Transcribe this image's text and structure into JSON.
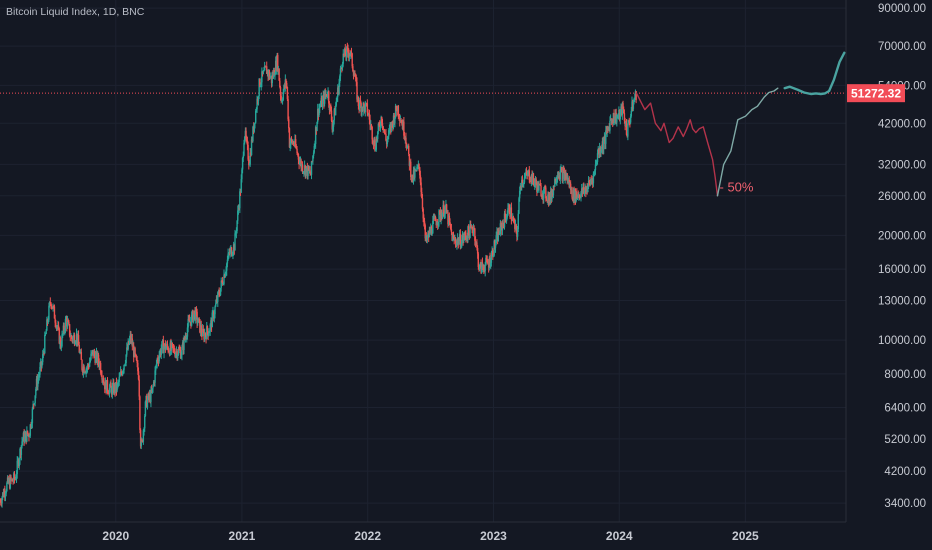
{
  "chart_data": {
    "type": "line",
    "title": "Bitcoin Liquid Index, 1D, BNC",
    "y_scale": "log",
    "ylim": [
      3000,
      95000
    ],
    "xlim": [
      "2019-01-30",
      "2025-10-20"
    ],
    "y_ticks": [
      90000,
      70000,
      54000,
      42000,
      32000,
      26000,
      20000,
      16000,
      13000,
      10000,
      8000,
      6400,
      5200,
      4200,
      3400
    ],
    "y_tick_labels": [
      "90000.00",
      "70000.00",
      "54000.00",
      "42000.00",
      "32000.00",
      "26000.00",
      "20000.00",
      "16000.00",
      "13000.00",
      "10000.00",
      "8000.00",
      "6400.00",
      "5200.00",
      "4200.00",
      "3400.00"
    ],
    "x_ticks": [
      "2020-01-01",
      "2021-01-01",
      "2022-01-01",
      "2023-01-01",
      "2024-01-01",
      "2025-01-01"
    ],
    "x_tick_labels": [
      "2020",
      "2021",
      "2022",
      "2023",
      "2024",
      "2025"
    ],
    "last_price": 51272.32,
    "last_price_label": "51272.32",
    "colors": {
      "up": "#26a69a",
      "down": "#ef5350",
      "background": "#141823",
      "price_tag": "#f24c57",
      "projection_down": "#b3334a",
      "projection_up": "#7fa9a6",
      "projection_final": "#4aa3a0"
    },
    "series": [
      {
        "type": "price",
        "x": [
          "2019-01-30",
          "2019-02-20",
          "2019-03-15",
          "2019-04-05",
          "2019-04-25",
          "2019-05-15",
          "2019-06-01",
          "2019-06-15",
          "2019-06-26",
          "2019-07-10",
          "2019-07-25",
          "2019-08-10",
          "2019-08-25",
          "2019-09-10",
          "2019-09-25",
          "2019-10-10",
          "2019-10-26",
          "2019-11-15",
          "2019-12-01",
          "2019-12-18",
          "2020-01-05",
          "2020-01-25",
          "2020-02-13",
          "2020-02-28",
          "2020-03-08",
          "2020-03-12",
          "2020-03-16",
          "2020-03-28",
          "2020-04-15",
          "2020-04-30",
          "2020-05-15",
          "2020-06-01",
          "2020-06-20",
          "2020-07-10",
          "2020-07-28",
          "2020-08-17",
          "2020-09-10",
          "2020-09-30",
          "2020-10-20",
          "2020-11-10",
          "2020-11-25",
          "2020-12-10",
          "2020-12-31",
          "2021-01-08",
          "2021-01-22",
          "2021-02-08",
          "2021-02-21",
          "2021-03-13",
          "2021-03-28",
          "2021-04-14",
          "2021-04-25",
          "2021-05-10",
          "2021-05-19",
          "2021-06-01",
          "2021-06-22",
          "2021-07-20",
          "2021-08-10",
          "2021-08-25",
          "2021-09-07",
          "2021-09-21",
          "2021-10-10",
          "2021-10-20",
          "2021-11-10",
          "2021-11-25",
          "2021-12-04",
          "2021-12-31",
          "2022-01-22",
          "2022-02-10",
          "2022-02-24",
          "2022-03-28",
          "2022-04-20",
          "2022-05-10",
          "2022-05-31",
          "2022-06-18",
          "2022-07-10",
          "2022-08-14",
          "2022-09-06",
          "2022-10-01",
          "2022-11-05",
          "2022-11-21",
          "2022-12-20",
          "2023-01-14",
          "2023-02-16",
          "2023-03-10",
          "2023-03-20",
          "2023-04-14",
          "2023-05-10",
          "2023-06-15",
          "2023-07-05",
          "2023-08-01",
          "2023-08-20",
          "2023-09-15",
          "2023-10-01",
          "2023-10-20",
          "2023-10-30",
          "2023-11-20",
          "2023-12-08",
          "2024-01-01",
          "2024-01-11",
          "2024-01-23",
          "2024-02-10",
          "2024-02-20"
        ],
        "y": [
          3450,
          3850,
          4000,
          5200,
          5400,
          7400,
          8600,
          11000,
          13100,
          11500,
          9700,
          11500,
          10100,
          10300,
          8400,
          8300,
          9200,
          8600,
          7400,
          7200,
          7300,
          8600,
          10200,
          8700,
          7900,
          5200,
          4900,
          6600,
          7000,
          8800,
          9600,
          9500,
          9300,
          9250,
          11000,
          12000,
          10300,
          10800,
          12900,
          15400,
          17700,
          18700,
          28900,
          40000,
          32500,
          44000,
          55000,
          60000,
          56000,
          64000,
          49000,
          56000,
          37000,
          37000,
          31800,
          30000,
          46000,
          49000,
          52000,
          41000,
          55000,
          65000,
          68000,
          57000,
          48000,
          46000,
          36000,
          44000,
          37000,
          47000,
          39000,
          29000,
          31500,
          19000,
          21500,
          24000,
          19300,
          19400,
          21200,
          16000,
          16800,
          20000,
          24000,
          20000,
          28500,
          30000,
          27500,
          25500,
          30500,
          29500,
          26000,
          26500,
          27500,
          30000,
          34500,
          37500,
          43500,
          44000,
          46500,
          39500,
          48000,
          51272
        ]
      },
      {
        "type": "projection",
        "name": "projected decline",
        "x": [
          "2024-02-20",
          "2024-03-01",
          "2024-03-15",
          "2024-04-01",
          "2024-04-15",
          "2024-05-01",
          "2024-05-10",
          "2024-05-25",
          "2024-06-05",
          "2024-06-20",
          "2024-07-05",
          "2024-07-15",
          "2024-07-25",
          "2024-08-01",
          "2024-08-10",
          "2024-08-20",
          "2024-09-01",
          "2024-09-15",
          "2024-09-28",
          "2024-10-05",
          "2024-10-12"
        ],
        "y": [
          51272,
          49000,
          46000,
          48000,
          42000,
          40000,
          42000,
          37000,
          38000,
          41000,
          38500,
          40500,
          43000,
          40500,
          39500,
          40500,
          41000,
          36500,
          33000,
          29500,
          26000
        ]
      },
      {
        "type": "projection",
        "name": "projected recovery",
        "x": [
          "2024-10-12",
          "2024-10-30",
          "2024-11-20",
          "2024-12-10",
          "2025-01-01",
          "2025-01-20",
          "2025-02-05",
          "2025-02-25",
          "2025-03-10",
          "2025-03-25",
          "2025-04-05"
        ],
        "y": [
          26000,
          32000,
          35000,
          43000,
          44000,
          46000,
          47000,
          50000,
          51500,
          52000,
          53000
        ]
      },
      {
        "type": "projection",
        "name": "projected rally",
        "x": [
          "2025-04-25",
          "2025-05-10",
          "2025-06-01",
          "2025-06-20",
          "2025-07-10",
          "2025-07-25",
          "2025-08-08",
          "2025-08-20",
          "2025-09-01",
          "2025-09-15",
          "2025-10-01",
          "2025-10-15"
        ],
        "y": [
          53000,
          53500,
          52500,
          51500,
          51000,
          51200,
          51000,
          51200,
          52000,
          56000,
          63000,
          67000
        ]
      }
    ],
    "annotations": [
      {
        "text": "- 50%",
        "x": "2024-10-18",
        "y": 27500
      }
    ]
  }
}
